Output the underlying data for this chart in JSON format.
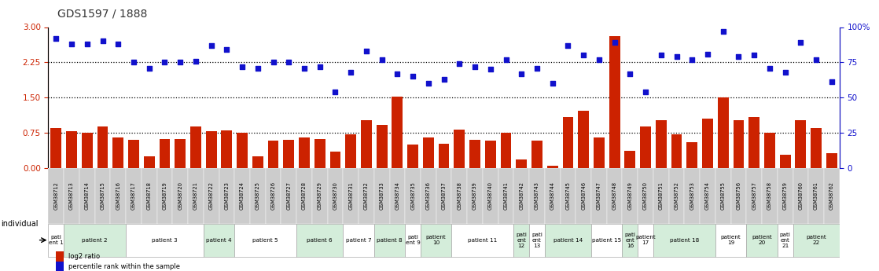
{
  "title": "GDS1597 / 1888",
  "samples": [
    "GSM38712",
    "GSM38713",
    "GSM38714",
    "GSM38715",
    "GSM38716",
    "GSM38717",
    "GSM38718",
    "GSM38719",
    "GSM38720",
    "GSM38721",
    "GSM38722",
    "GSM38723",
    "GSM38724",
    "GSM38725",
    "GSM38726",
    "GSM38727",
    "GSM38728",
    "GSM38729",
    "GSM38730",
    "GSM38731",
    "GSM38732",
    "GSM38733",
    "GSM38734",
    "GSM38735",
    "GSM38736",
    "GSM38737",
    "GSM38738",
    "GSM38739",
    "GSM38740",
    "GSM38741",
    "GSM38742",
    "GSM38743",
    "GSM38744",
    "GSM38745",
    "GSM38746",
    "GSM38747",
    "GSM38748",
    "GSM38749",
    "GSM38750",
    "GSM38751",
    "GSM38752",
    "GSM38753",
    "GSM38754",
    "GSM38755",
    "GSM38756",
    "GSM38757",
    "GSM38758",
    "GSM38759",
    "GSM38760",
    "GSM38761",
    "GSM38762"
  ],
  "log2_ratio": [
    0.85,
    0.78,
    0.75,
    0.88,
    0.65,
    0.6,
    0.25,
    0.62,
    0.62,
    0.88,
    0.78,
    0.8,
    0.75,
    0.25,
    0.58,
    0.6,
    0.65,
    0.62,
    0.35,
    0.72,
    1.02,
    0.92,
    1.52,
    0.5,
    0.65,
    0.52,
    0.82,
    0.6,
    0.58,
    0.75,
    0.18,
    0.58,
    0.05,
    1.08,
    1.22,
    0.65,
    2.8,
    0.36,
    0.88,
    1.02,
    0.72,
    0.55,
    1.05,
    1.5,
    1.02,
    1.08,
    0.75,
    0.28,
    1.02,
    0.85,
    0.32
  ],
  "percentile": [
    92,
    88,
    88,
    90,
    88,
    75,
    71,
    75,
    75,
    76,
    87,
    84,
    72,
    71,
    75,
    75,
    71,
    72,
    54,
    68,
    83,
    77,
    67,
    65,
    60,
    63,
    74,
    72,
    70,
    77,
    67,
    71,
    60,
    87,
    80,
    77,
    89,
    67,
    54,
    80,
    79,
    77,
    81,
    97,
    79,
    80,
    71,
    68,
    89,
    77,
    61
  ],
  "patients": [
    {
      "label": "pati\nent 1",
      "start": 0,
      "end": 1,
      "color": "#ffffff"
    },
    {
      "label": "patient 2",
      "start": 1,
      "end": 5,
      "color": "#d4edda"
    },
    {
      "label": "patient 3",
      "start": 5,
      "end": 10,
      "color": "#ffffff"
    },
    {
      "label": "patient 4",
      "start": 10,
      "end": 12,
      "color": "#d4edda"
    },
    {
      "label": "patient 5",
      "start": 12,
      "end": 16,
      "color": "#ffffff"
    },
    {
      "label": "patient 6",
      "start": 16,
      "end": 19,
      "color": "#d4edda"
    },
    {
      "label": "patient 7",
      "start": 19,
      "end": 21,
      "color": "#ffffff"
    },
    {
      "label": "patient 8",
      "start": 21,
      "end": 23,
      "color": "#d4edda"
    },
    {
      "label": "pati\nent 9",
      "start": 23,
      "end": 24,
      "color": "#ffffff"
    },
    {
      "label": "patient\n10",
      "start": 24,
      "end": 26,
      "color": "#d4edda"
    },
    {
      "label": "patient 11",
      "start": 26,
      "end": 30,
      "color": "#ffffff"
    },
    {
      "label": "pati\nent\n12",
      "start": 30,
      "end": 31,
      "color": "#d4edda"
    },
    {
      "label": "pati\nent\n13",
      "start": 31,
      "end": 32,
      "color": "#ffffff"
    },
    {
      "label": "patient 14",
      "start": 32,
      "end": 35,
      "color": "#d4edda"
    },
    {
      "label": "patient 15",
      "start": 35,
      "end": 37,
      "color": "#ffffff"
    },
    {
      "label": "pati\nent\n16",
      "start": 37,
      "end": 38,
      "color": "#d4edda"
    },
    {
      "label": "patient\n17",
      "start": 38,
      "end": 39,
      "color": "#ffffff"
    },
    {
      "label": "patient 18",
      "start": 39,
      "end": 43,
      "color": "#d4edda"
    },
    {
      "label": "patient\n19",
      "start": 43,
      "end": 45,
      "color": "#ffffff"
    },
    {
      "label": "patient\n20",
      "start": 45,
      "end": 47,
      "color": "#d4edda"
    },
    {
      "label": "pati\nent\n21",
      "start": 47,
      "end": 48,
      "color": "#ffffff"
    },
    {
      "label": "patient\n22",
      "start": 48,
      "end": 51,
      "color": "#d4edda"
    }
  ],
  "ylim_left": [
    0,
    3
  ],
  "yticks_left": [
    0,
    0.75,
    1.5,
    2.25,
    3
  ],
  "ylim_right": [
    0,
    100
  ],
  "yticks_right": [
    0,
    25,
    50,
    75,
    100
  ],
  "hlines": [
    0.75,
    1.5,
    2.25
  ],
  "bar_color": "#cc2200",
  "dot_color": "#1111cc",
  "title_color": "#333333",
  "left_axis_color": "#cc2200",
  "right_axis_color": "#1111cc",
  "tick_label_bg": "#cccccc",
  "patient_row_border": "#aaaaaa"
}
